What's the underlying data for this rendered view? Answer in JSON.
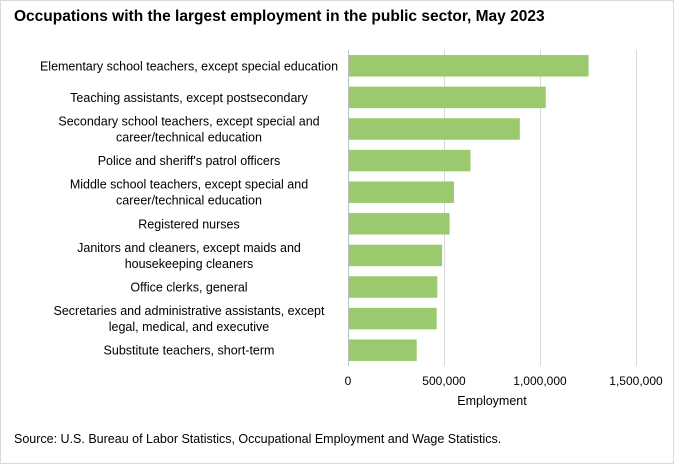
{
  "chart_data": {
    "type": "bar",
    "orientation": "horizontal",
    "title": "Occupations with the largest employment in the public sector, May 2023",
    "xlabel": "Employment",
    "ylabel": "",
    "xlim": [
      0,
      1500000
    ],
    "xticks": [
      0,
      500000,
      1000000,
      1500000
    ],
    "xtick_labels": [
      "0",
      "500,000",
      "1,000,000",
      "1,500,000"
    ],
    "grid": true,
    "legend": "none",
    "bar_color": "#9bc96e",
    "categories": [
      [
        "Elementary school teachers, except special education"
      ],
      [
        "Teaching assistants, except postsecondary"
      ],
      [
        "Secondary school teachers, except special and",
        "career/technical education"
      ],
      [
        "Police and sheriff's patrol officers"
      ],
      [
        "Middle school teachers, except special and",
        "career/technical education"
      ],
      [
        "Registered nurses"
      ],
      [
        "Janitors and cleaners, except maids and",
        "housekeeping cleaners"
      ],
      [
        "Office clerks, general"
      ],
      [
        "Secretaries and administrative assistants, except",
        "legal, medical, and executive"
      ],
      [
        "Substitute teachers, short-term"
      ]
    ],
    "values": [
      1253000,
      1030000,
      895000,
      638000,
      552000,
      529000,
      490000,
      465000,
      462000,
      358000
    ],
    "source": "Source: U.S. Bureau of Labor Statistics, Occupational Employment and Wage Statistics."
  }
}
